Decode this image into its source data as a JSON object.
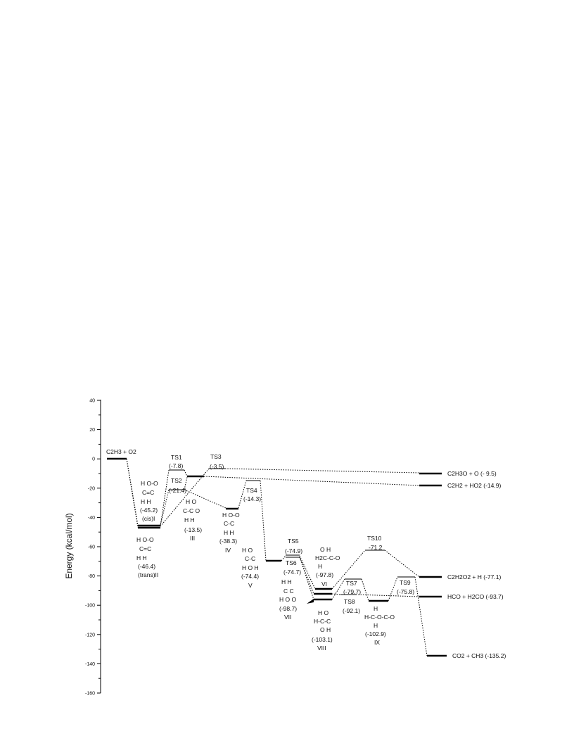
{
  "axis": {
    "ylabel": "Energy (kcal/mol)",
    "ylim": [
      -160,
      40
    ],
    "ticks": [
      40,
      20,
      0,
      -20,
      -40,
      -60,
      -80,
      -100,
      -120,
      -140,
      -160
    ]
  },
  "species": {
    "reactant": "C2H3 + O2",
    "ts1": "TS1",
    "ts1_energy": "(-7.8)",
    "ts2": "TS2",
    "ts2_energy": "(-21.4)",
    "ts3": "TS3",
    "ts3_energy": "(-3.5)",
    "ts4": "TS4",
    "ts4_energy": "(-14.3)",
    "ts5": "TS5",
    "ts5_energy": "(-74.9)",
    "ts6": "TS6",
    "ts6_energy": "(-74.7)",
    "ts7": "TS7",
    "ts7_energy": "(-79.7)",
    "ts8": "TS8",
    "ts8_energy": "(-92.1)",
    "ts9": "TS9",
    "ts9_energy": "(-75.8)",
    "ts10": "TS10",
    "ts10_energy": "-71.2",
    "cis_I_energy": "(-45.2)",
    "cis_I_name": "(cis)I",
    "trans_II_energy": "(-46.4)",
    "trans_II_name": "(trans)II",
    "III_energy": "(-13.5)",
    "III_name": "III",
    "IV_energy": "(-38.3)",
    "IV_name": "IV",
    "V_energy": "(-74.4)",
    "V_name": "V",
    "VI_energy": "(-97.8)",
    "VI_name": "VI",
    "VII_energy": "(-98.7)",
    "VII_name": "VII",
    "VIII_energy": "(-103.1)",
    "VIII_name": "VIII",
    "IX_energy": "(-102.9)",
    "IX_name": "IX"
  },
  "products": {
    "p1": "C2H3O + O (- 9.5)",
    "p2": "C2H2 + HO2 (-14.9)",
    "p3": "C2H2O2 + H (-77.1)",
    "p4": "HCO + H2CO (-93.7)",
    "p5": "CO2 + CH3 (-135.2)"
  },
  "structures": {
    "s_cis_1": "H O-O",
    "s_cis_2": "C=C",
    "s_cis_3": "H   H",
    "s_trans_1": "H   O-O",
    "s_trans_2": "C=C",
    "s_trans_3": "H   H",
    "s_III_1": "H  O",
    "s_III_2": "C-C   O",
    "s_III_3": "H   H",
    "s_IV_1": "H O-O",
    "s_IV_2": "C-C",
    "s_IV_3": "H  H",
    "s_V_1": "H      O",
    "s_V_2": "C-C",
    "s_V_3": "H O H",
    "s_VI_1": "O  H",
    "s_VI_2": "H2C-C-O",
    "s_VI_3": "H",
    "s_VII_1": "H   H",
    "s_VII_2": "C   C",
    "s_VII_3": "H  O   O",
    "s_VIII_1": "H   O",
    "s_VIII_2": "H-C-C",
    "s_VIII_3": "O  H",
    "s_IX_1": "H",
    "s_IX_2": "H-C-O-C-O",
    "s_IX_3": "H"
  },
  "chart_data": {
    "type": "energy-level-diagram",
    "ylabel": "Energy (kcal/mol)",
    "ylim": [
      -160,
      40
    ],
    "levels": [
      {
        "name": "C2H3 + O2",
        "energy": 0
      },
      {
        "name": "(cis)I",
        "energy": -45.2
      },
      {
        "name": "(trans)II",
        "energy": -46.4
      },
      {
        "name": "TS1",
        "energy": -7.8
      },
      {
        "name": "TS2",
        "energy": -21.4
      },
      {
        "name": "III",
        "energy": -13.5
      },
      {
        "name": "TS3",
        "energy": -3.5
      },
      {
        "name": "IV",
        "energy": -38.3
      },
      {
        "name": "TS4",
        "energy": -14.3
      },
      {
        "name": "V",
        "energy": -74.4
      },
      {
        "name": "TS5",
        "energy": -74.9
      },
      {
        "name": "TS6",
        "energy": -74.7
      },
      {
        "name": "VI",
        "energy": -97.8
      },
      {
        "name": "VII",
        "energy": -98.7
      },
      {
        "name": "VIII",
        "energy": -103.1
      },
      {
        "name": "TS7",
        "energy": -79.7
      },
      {
        "name": "TS8",
        "energy": -92.1
      },
      {
        "name": "IX",
        "energy": -102.9
      },
      {
        "name": "TS9",
        "energy": -75.8
      },
      {
        "name": "TS10",
        "energy": -71.2
      },
      {
        "name": "C2H3O + O",
        "energy": -9.5
      },
      {
        "name": "C2H2 + HO2",
        "energy": -14.9
      },
      {
        "name": "C2H2O2 + H",
        "energy": -77.1
      },
      {
        "name": "HCO + H2CO",
        "energy": -93.7
      },
      {
        "name": "CO2 + CH3",
        "energy": -135.2
      }
    ]
  }
}
